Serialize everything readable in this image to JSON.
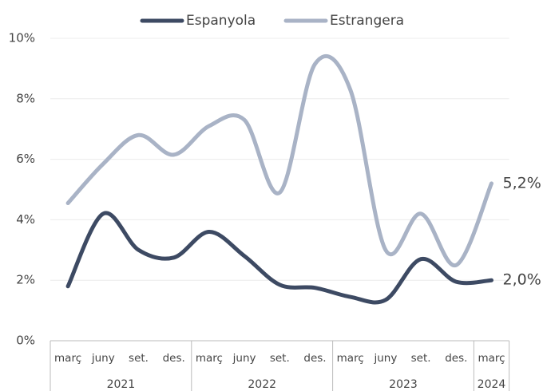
{
  "chart_data": {
    "type": "line",
    "groups": [
      {
        "name": "2021",
        "categories": [
          "març",
          "juny",
          "set.",
          "des."
        ]
      },
      {
        "name": "2022",
        "categories": [
          "març",
          "juny",
          "set.",
          "des."
        ]
      },
      {
        "name": "2023",
        "categories": [
          "març",
          "juny",
          "set.",
          "des."
        ]
      },
      {
        "name": "2024",
        "categories": [
          "març"
        ]
      }
    ],
    "series": [
      {
        "name": "Espanyola",
        "color": "#3d4a63",
        "values": [
          1.8,
          4.2,
          3.0,
          2.75,
          3.6,
          2.8,
          1.85,
          1.75,
          1.45,
          1.35,
          2.7,
          1.95,
          2.0
        ],
        "value_labels": [
          null,
          null,
          null,
          null,
          null,
          null,
          null,
          null,
          null,
          null,
          null,
          null,
          "2,0%"
        ]
      },
      {
        "name": "Estrangera",
        "color": "#a9b3c6",
        "values": [
          4.55,
          5.85,
          6.8,
          6.15,
          7.1,
          7.3,
          4.9,
          9.15,
          8.3,
          3.0,
          4.2,
          2.5,
          5.2
        ],
        "value_labels": [
          null,
          null,
          null,
          null,
          null,
          null,
          null,
          null,
          null,
          null,
          null,
          null,
          "5,2%"
        ]
      }
    ],
    "ylim": [
      0,
      10
    ],
    "yticks": [
      {
        "value": 0,
        "label": "0%"
      },
      {
        "value": 2,
        "label": "2%"
      },
      {
        "value": 4,
        "label": "4%"
      },
      {
        "value": 6,
        "label": "6%"
      },
      {
        "value": 8,
        "label": "8%"
      },
      {
        "value": 10,
        "label": "10%"
      }
    ],
    "grid": true,
    "legend": "top"
  }
}
